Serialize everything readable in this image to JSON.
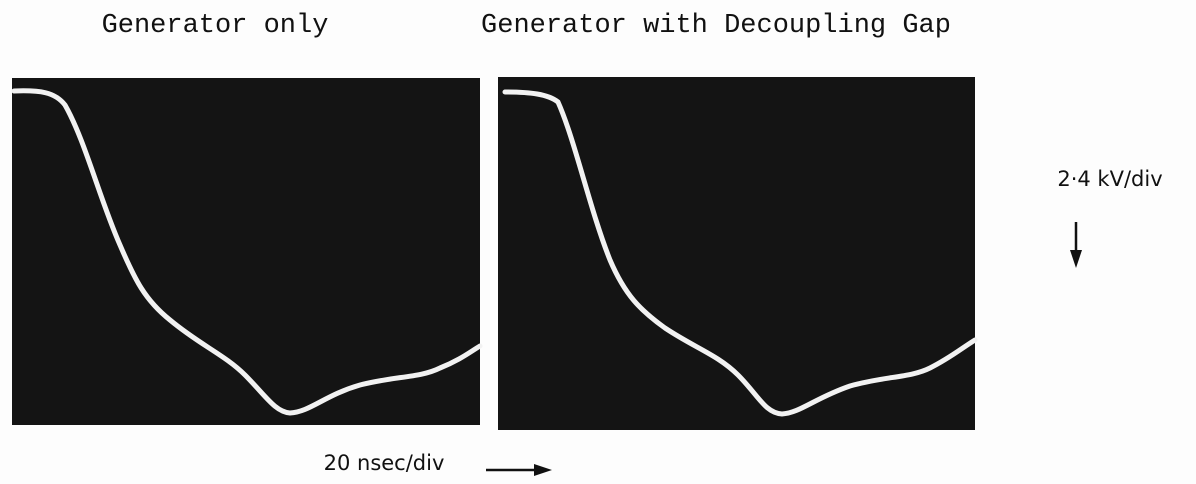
{
  "panels": [
    {
      "title": "Generator only"
    },
    {
      "title": "Generator with Decoupling Gap"
    }
  ],
  "vertical_scale": "2·4 kV/div",
  "horizontal_scale": "20 nsec/div"
}
